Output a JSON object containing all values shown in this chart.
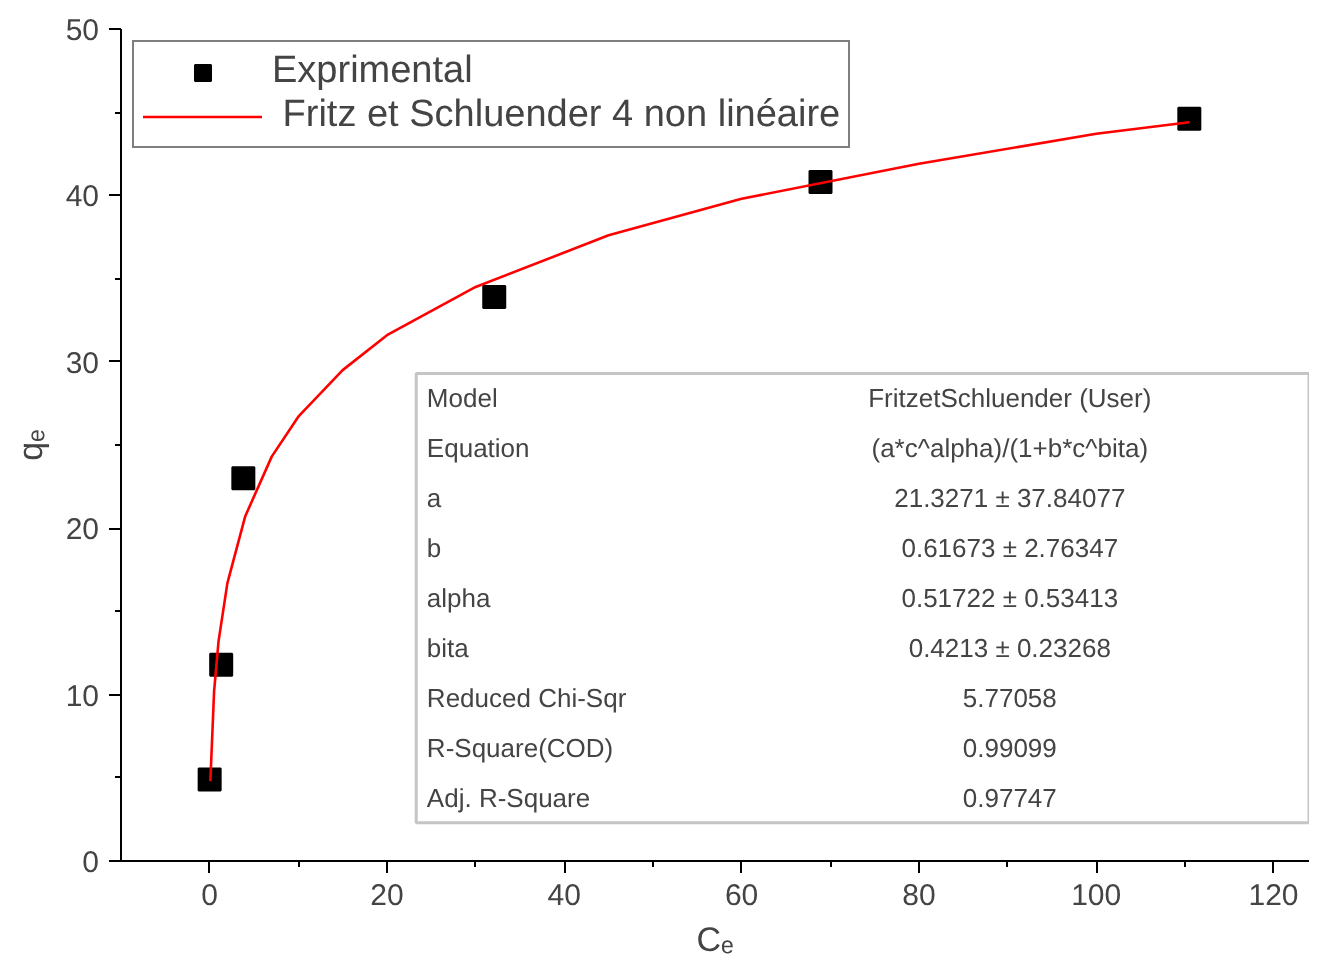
{
  "chart_data": {
    "type": "scatter",
    "xlabel": "Cₑ",
    "ylabel": "qₑ",
    "xlim": [
      -10,
      124
    ],
    "ylim": [
      0,
      50
    ],
    "xticks": [
      0,
      20,
      40,
      60,
      80,
      100,
      120
    ],
    "yticks": [
      0,
      10,
      20,
      30,
      40,
      50
    ],
    "grid": false,
    "legend": "top left",
    "series": [
      {
        "name": "Exprimental",
        "marker": "square",
        "color": "#000000",
        "x": [
          0,
          1.3,
          3.8,
          32.1,
          68.9,
          110.5
        ],
        "values": [
          4.9,
          11.8,
          23.0,
          33.9,
          40.8,
          44.6
        ]
      },
      {
        "name": " Fritz et Schluender 4 non linéaire",
        "type": "line",
        "marker": "none",
        "line_style": "solid",
        "color": "#ff0000",
        "x": [
          0.08,
          0.5,
          1,
          2,
          4,
          7,
          10,
          15,
          20,
          30,
          45,
          60,
          80,
          100,
          110.5
        ],
        "values": [
          4.8,
          10.2,
          13.2,
          16.7,
          20.7,
          24.3,
          26.7,
          29.5,
          31.6,
          34.5,
          37.6,
          39.8,
          41.9,
          43.7,
          44.4
        ]
      }
    ],
    "annotations": [
      "Model",
      "FritzetSchluender (User)",
      "Equation",
      "(a*c^alpha)/(1+b*c^bita)",
      "a",
      "21.3271 ± 37.84077",
      "b",
      "0.61673 ± 2.76347",
      "alpha",
      "0.51722 ± 0.53413",
      "bita",
      "0.4213 ± 0.23268",
      "Reduced Chi-Sqr",
      "5.77058",
      "R-Square(COD)",
      "0.99099",
      "Adj. R-Square",
      "0.97747"
    ]
  }
}
